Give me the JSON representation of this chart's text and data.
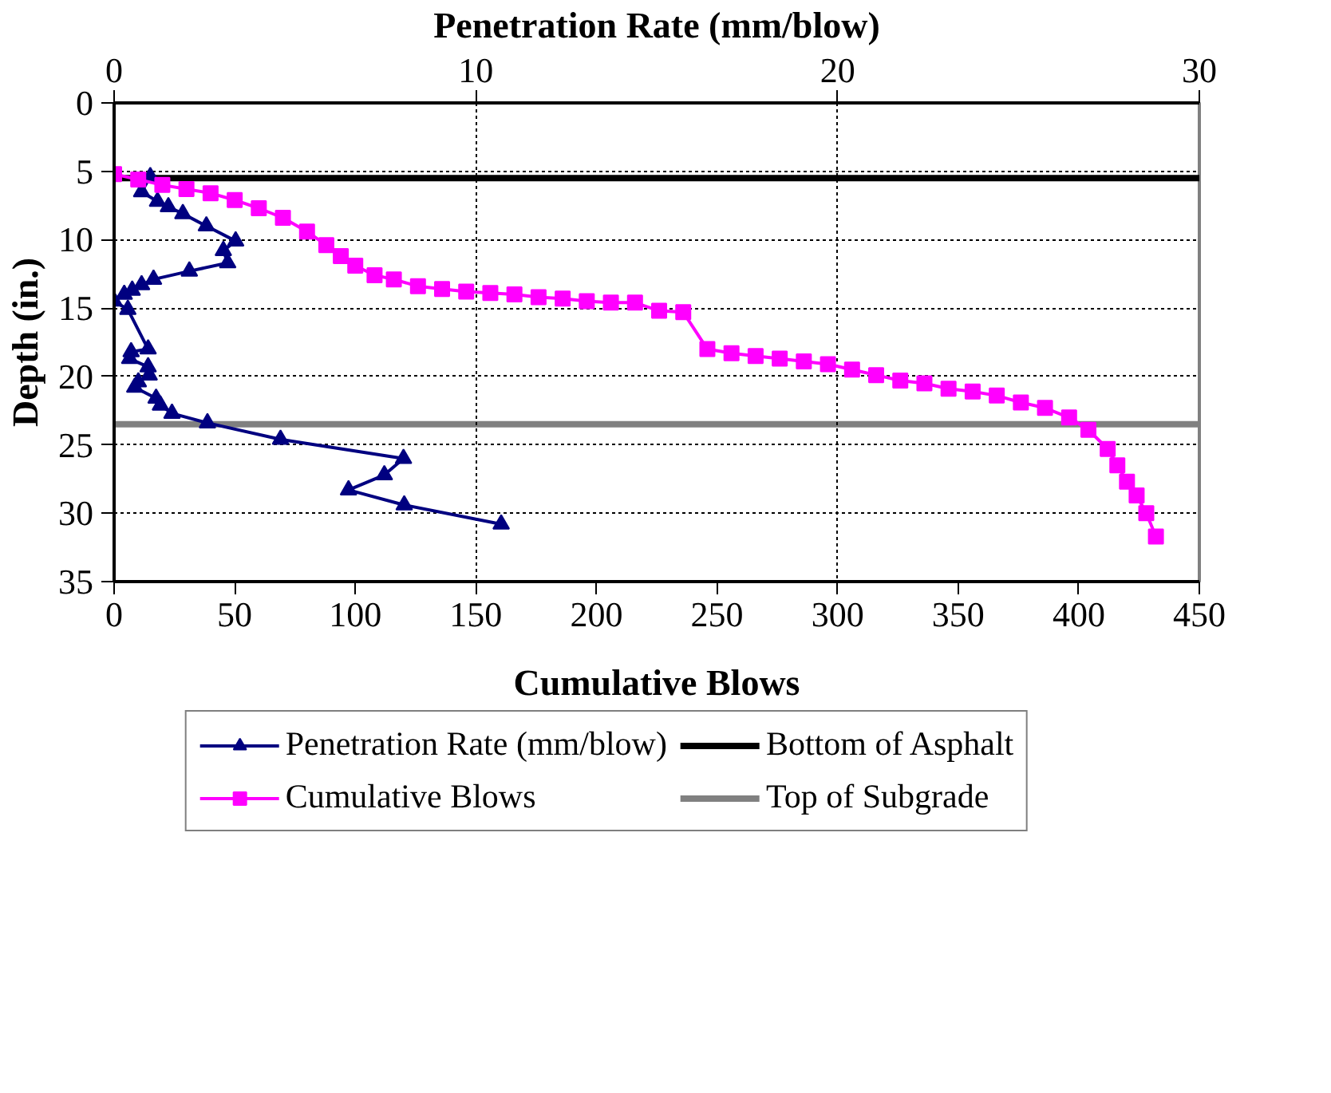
{
  "chart_data": {
    "type": "line",
    "xlabel": "Cumulative Blows",
    "x2label": "Penetration Rate (mm/blow)",
    "ylabel": "Depth (in.)",
    "xlim": [
      0,
      450
    ],
    "xticks": [
      0,
      50,
      100,
      150,
      200,
      250,
      300,
      350,
      400,
      450
    ],
    "x2lim": [
      0,
      30
    ],
    "x2ticks": [
      0,
      10,
      20,
      30
    ],
    "ylim": [
      35,
      0
    ],
    "yticks": [
      0,
      5,
      10,
      15,
      20,
      25,
      30,
      35
    ],
    "grid": true,
    "legend": "bottom",
    "line_style": "solid",
    "series": [
      {
        "name": "Penetration Rate (mm/blow)",
        "color": "#000080",
        "marker": "triangle",
        "axis": "x2",
        "x": [
          1.0,
          0.76,
          1.2,
          1.5,
          1.9,
          2.55,
          3.36,
          3.02,
          3.14,
          2.08,
          1.09,
          0.76,
          0.5,
          0.28,
          0,
          0.38,
          0.94,
          0.47,
          0.43,
          0.94,
          0.97,
          0.67,
          0.57,
          1.16,
          1.28,
          1.6,
          2.58,
          4.6,
          8.0,
          7.47,
          6.48,
          8.02,
          10.7
        ],
        "values": [
          5.4,
          6.5,
          7.2,
          7.6,
          8.1,
          9.0,
          10.1,
          10.8,
          11.7,
          12.3,
          12.9,
          13.3,
          13.7,
          14.0,
          14.5,
          15.1,
          18.0,
          18.2,
          18.7,
          19.3,
          19.9,
          20.4,
          20.8,
          21.6,
          22.1,
          22.7,
          23.4,
          24.6,
          26.0,
          27.2,
          28.3,
          29.4,
          30.8
        ]
      },
      {
        "name": "Cumulative Blows",
        "color": "#ff00ff",
        "marker": "square",
        "x": [
          0,
          10,
          20,
          30,
          40,
          50,
          60,
          70,
          80,
          88,
          94,
          100,
          108,
          116,
          126,
          136,
          146,
          156,
          166,
          176,
          186,
          196,
          206,
          216,
          226,
          236,
          246,
          256,
          266,
          276,
          286,
          296,
          306,
          316,
          326,
          336,
          346,
          356,
          366,
          376,
          386,
          396,
          404,
          412,
          416,
          420,
          424,
          428,
          432
        ],
        "values": [
          5.2,
          5.6,
          6.0,
          6.3,
          6.6,
          7.1,
          7.7,
          8.4,
          9.4,
          10.4,
          11.2,
          11.9,
          12.6,
          12.9,
          13.4,
          13.6,
          13.8,
          13.9,
          14.0,
          14.2,
          14.3,
          14.5,
          14.6,
          14.6,
          15.2,
          15.3,
          18.0,
          18.3,
          18.5,
          18.7,
          18.9,
          19.1,
          19.5,
          19.9,
          20.3,
          20.5,
          20.9,
          21.1,
          21.4,
          21.9,
          22.3,
          23.0,
          23.9,
          25.3,
          26.5,
          27.7,
          28.7,
          30.0,
          31.7
        ]
      }
    ],
    "ref_lines": [
      {
        "axis": "y",
        "value": 5.5,
        "label": "Bottom of Asphalt",
        "color": "#000000"
      },
      {
        "axis": "y",
        "value": 23.5,
        "label": "Top of Subgrade",
        "color": "#808080"
      }
    ]
  }
}
